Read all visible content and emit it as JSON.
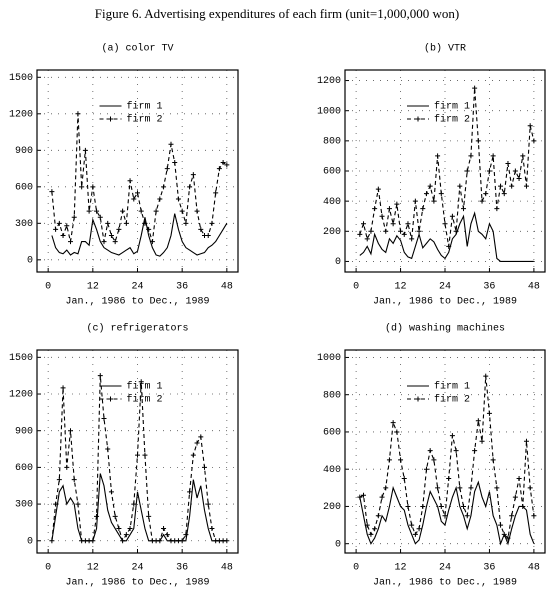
{
  "title": "Figure 6. Advertising expenditures of each firm (unit=1,000,000 won)",
  "chart_data": [
    {
      "type": "line",
      "title": "(a) color TV",
      "xlabel": "Jan., 1986 to Dec., 1989",
      "x": [
        1,
        2,
        3,
        4,
        5,
        6,
        7,
        8,
        9,
        10,
        11,
        12,
        13,
        14,
        15,
        16,
        17,
        18,
        19,
        20,
        21,
        22,
        23,
        24,
        25,
        26,
        27,
        28,
        29,
        30,
        31,
        32,
        33,
        34,
        35,
        36,
        37,
        38,
        39,
        40,
        41,
        42,
        43,
        44,
        45,
        46,
        47,
        48
      ],
      "series": [
        {
          "name": "firm 1",
          "color": "#000000",
          "dash": "none",
          "marker": "none",
          "values": [
            200,
            100,
            60,
            50,
            80,
            40,
            60,
            50,
            150,
            150,
            120,
            330,
            250,
            150,
            100,
            80,
            60,
            50,
            40,
            60,
            80,
            100,
            50,
            70,
            200,
            350,
            200,
            100,
            40,
            30,
            60,
            100,
            200,
            380,
            250,
            150,
            100,
            80,
            60,
            40,
            50,
            60,
            100,
            120,
            150,
            200,
            250,
            300
          ]
        },
        {
          "name": "firm 2",
          "color": "#000000",
          "dash": "4 3",
          "marker": "plus",
          "values": [
            560,
            250,
            300,
            200,
            280,
            150,
            350,
            1200,
            600,
            900,
            400,
            600,
            400,
            350,
            150,
            300,
            200,
            150,
            250,
            400,
            300,
            650,
            500,
            550,
            400,
            300,
            250,
            150,
            400,
            500,
            600,
            750,
            950,
            800,
            500,
            400,
            300,
            600,
            700,
            400,
            250,
            200,
            200,
            300,
            550,
            750,
            800,
            780
          ]
        }
      ],
      "xlim": [
        -3,
        51
      ],
      "ylim": [
        -100,
        1560
      ],
      "xticks": [
        0,
        12,
        24,
        36,
        48
      ],
      "yticks": [
        0,
        300,
        600,
        900,
        1200,
        1500
      ],
      "grid": true,
      "legend": "upper center"
    },
    {
      "type": "line",
      "title": "(b) VTR",
      "xlabel": "Jan., 1986 to Dec., 1989",
      "x": [
        1,
        2,
        3,
        4,
        5,
        6,
        7,
        8,
        9,
        10,
        11,
        12,
        13,
        14,
        15,
        16,
        17,
        18,
        19,
        20,
        21,
        22,
        23,
        24,
        25,
        26,
        27,
        28,
        29,
        30,
        31,
        32,
        33,
        34,
        35,
        36,
        37,
        38,
        39,
        40,
        41,
        42,
        43,
        44,
        45,
        46,
        47,
        48
      ],
      "series": [
        {
          "name": "firm 1",
          "color": "#000000",
          "dash": "none",
          "marker": "none",
          "values": [
            40,
            60,
            100,
            50,
            180,
            120,
            80,
            60,
            150,
            120,
            170,
            140,
            60,
            30,
            20,
            100,
            180,
            90,
            120,
            150,
            130,
            80,
            40,
            20,
            60,
            150,
            180,
            250,
            300,
            100,
            250,
            320,
            200,
            180,
            150,
            250,
            200,
            20,
            0,
            0,
            0,
            0,
            0,
            0,
            0,
            0,
            0,
            0
          ]
        },
        {
          "name": "firm 2",
          "color": "#000000",
          "dash": "4 3",
          "marker": "plus",
          "values": [
            180,
            250,
            150,
            200,
            350,
            480,
            300,
            200,
            350,
            250,
            380,
            200,
            180,
            250,
            150,
            400,
            200,
            350,
            450,
            500,
            400,
            700,
            450,
            250,
            100,
            300,
            200,
            500,
            350,
            600,
            700,
            1150,
            800,
            400,
            450,
            600,
            700,
            350,
            500,
            450,
            650,
            500,
            600,
            550,
            700,
            500,
            900,
            800
          ]
        }
      ],
      "xlim": [
        -3,
        51
      ],
      "ylim": [
        -70,
        1270
      ],
      "xticks": [
        0,
        12,
        24,
        36,
        48
      ],
      "yticks": [
        0,
        200,
        400,
        600,
        800,
        1000,
        1200
      ],
      "grid": true,
      "legend": "upper center"
    },
    {
      "type": "line",
      "title": "(c) refrigerators",
      "xlabel": "Jan., 1986 to Dec., 1989",
      "x": [
        1,
        2,
        3,
        4,
        5,
        6,
        7,
        8,
        9,
        10,
        11,
        12,
        13,
        14,
        15,
        16,
        17,
        18,
        19,
        20,
        21,
        22,
        23,
        24,
        25,
        26,
        27,
        28,
        29,
        30,
        31,
        32,
        33,
        34,
        35,
        36,
        37,
        38,
        39,
        40,
        41,
        42,
        43,
        44,
        45,
        46,
        47,
        48
      ],
      "series": [
        {
          "name": "firm 1",
          "color": "#000000",
          "dash": "none",
          "marker": "none",
          "values": [
            0,
            200,
            400,
            450,
            300,
            350,
            300,
            100,
            0,
            0,
            0,
            0,
            100,
            550,
            450,
            250,
            150,
            100,
            50,
            0,
            0,
            50,
            100,
            400,
            250,
            100,
            0,
            0,
            0,
            0,
            50,
            0,
            0,
            0,
            0,
            0,
            0,
            200,
            500,
            350,
            450,
            250,
            100,
            0,
            0,
            0,
            0,
            0
          ]
        },
        {
          "name": "firm 2",
          "color": "#000000",
          "dash": "4 3",
          "marker": "plus",
          "values": [
            0,
            300,
            500,
            1250,
            600,
            900,
            500,
            300,
            0,
            0,
            0,
            0,
            200,
            1350,
            1000,
            750,
            400,
            200,
            100,
            0,
            50,
            100,
            300,
            700,
            1300,
            700,
            200,
            0,
            0,
            0,
            100,
            50,
            0,
            0,
            0,
            0,
            50,
            400,
            700,
            800,
            850,
            600,
            300,
            100,
            0,
            0,
            0,
            0
          ]
        }
      ],
      "xlim": [
        -3,
        51
      ],
      "ylim": [
        -100,
        1560
      ],
      "xticks": [
        0,
        12,
        24,
        36,
        48
      ],
      "yticks": [
        0,
        300,
        600,
        900,
        1200,
        1500
      ],
      "grid": true,
      "legend": "upper center"
    },
    {
      "type": "line",
      "title": "(d) washing machines",
      "xlabel": "Jan., 1986 to Dec., 1989",
      "x": [
        1,
        2,
        3,
        4,
        5,
        6,
        7,
        8,
        9,
        10,
        11,
        12,
        13,
        14,
        15,
        16,
        17,
        18,
        19,
        20,
        21,
        22,
        23,
        24,
        25,
        26,
        27,
        28,
        29,
        30,
        31,
        32,
        33,
        34,
        35,
        36,
        37,
        38,
        39,
        40,
        41,
        42,
        43,
        44,
        45,
        46,
        47,
        48
      ],
      "series": [
        {
          "name": "firm 1",
          "color": "#000000",
          "dash": "none",
          "marker": "none",
          "values": [
            250,
            150,
            50,
            0,
            30,
            80,
            150,
            120,
            200,
            300,
            250,
            200,
            180,
            100,
            50,
            0,
            20,
            100,
            200,
            280,
            240,
            200,
            120,
            100,
            180,
            250,
            300,
            200,
            150,
            80,
            150,
            280,
            330,
            250,
            200,
            280,
            150,
            100,
            0,
            50,
            0,
            80,
            150,
            200,
            200,
            180,
            50,
            0
          ]
        },
        {
          "name": "firm 2",
          "color": "#000000",
          "dash": "4 3",
          "marker": "plus",
          "values": [
            250,
            260,
            100,
            50,
            80,
            150,
            250,
            300,
            450,
            650,
            600,
            450,
            350,
            200,
            100,
            50,
            80,
            200,
            400,
            500,
            450,
            300,
            200,
            150,
            350,
            580,
            500,
            300,
            200,
            150,
            300,
            500,
            660,
            550,
            900,
            700,
            450,
            300,
            100,
            50,
            30,
            150,
            250,
            350,
            200,
            550,
            300,
            150
          ]
        }
      ],
      "xlim": [
        -3,
        51
      ],
      "ylim": [
        -50,
        1040
      ],
      "xticks": [
        0,
        12,
        24,
        36,
        48
      ],
      "yticks": [
        0,
        200,
        400,
        600,
        800,
        1000
      ],
      "grid": true,
      "legend": "upper center"
    }
  ]
}
